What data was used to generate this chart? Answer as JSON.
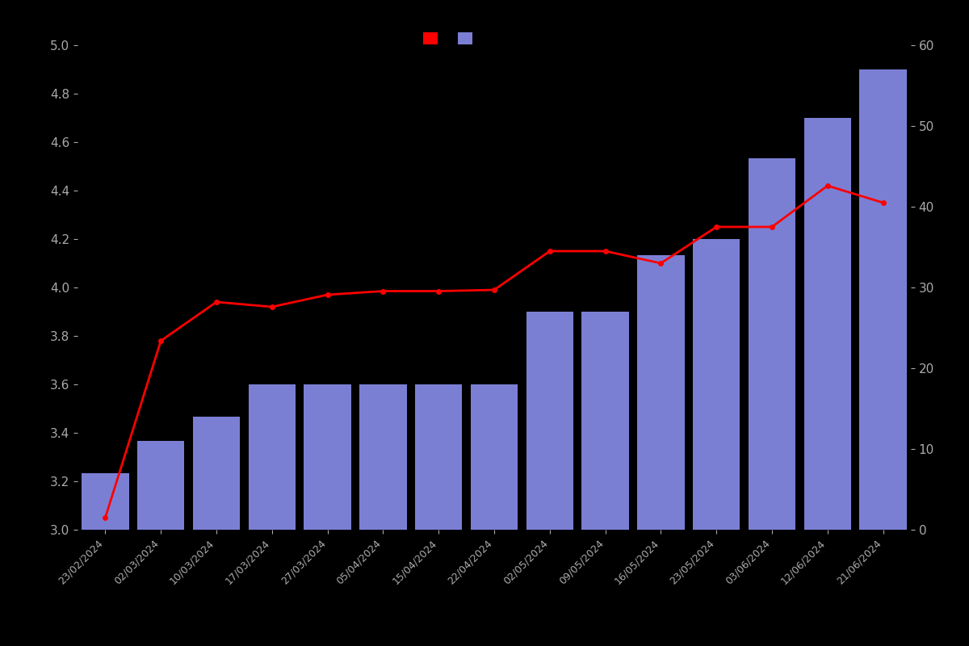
{
  "dates": [
    "23/02/2024",
    "02/03/2024",
    "10/03/2024",
    "17/03/2024",
    "27/03/2024",
    "05/04/2024",
    "15/04/2024",
    "22/04/2024",
    "02/05/2024",
    "09/05/2024",
    "16/05/2024",
    "23/05/2024",
    "03/06/2024",
    "12/06/2024",
    "21/06/2024"
  ],
  "bar_values": [
    7,
    11,
    14,
    18,
    18,
    18,
    18,
    18,
    27,
    27,
    34,
    36,
    46,
    51,
    57
  ],
  "line_values": [
    3.05,
    3.78,
    3.94,
    3.92,
    3.97,
    3.985,
    3.985,
    3.99,
    4.15,
    4.15,
    4.1,
    4.25,
    4.25,
    4.42,
    4.35
  ],
  "bar_color": "#7B7FD4",
  "line_color": "#FF0000",
  "line_marker": "o",
  "line_markersize": 4,
  "background_color": "#000000",
  "text_color": "#AAAAAA",
  "ylim_left": [
    3.0,
    5.0
  ],
  "ylim_right": [
    0,
    60
  ],
  "yticks_left": [
    3.0,
    3.2,
    3.4,
    3.6,
    3.8,
    4.0,
    4.2,
    4.4,
    4.6,
    4.8,
    5.0
  ],
  "yticks_right": [
    0,
    10,
    20,
    30,
    40,
    50,
    60
  ],
  "legend_labels": [
    "",
    ""
  ],
  "bar_width": 0.85
}
